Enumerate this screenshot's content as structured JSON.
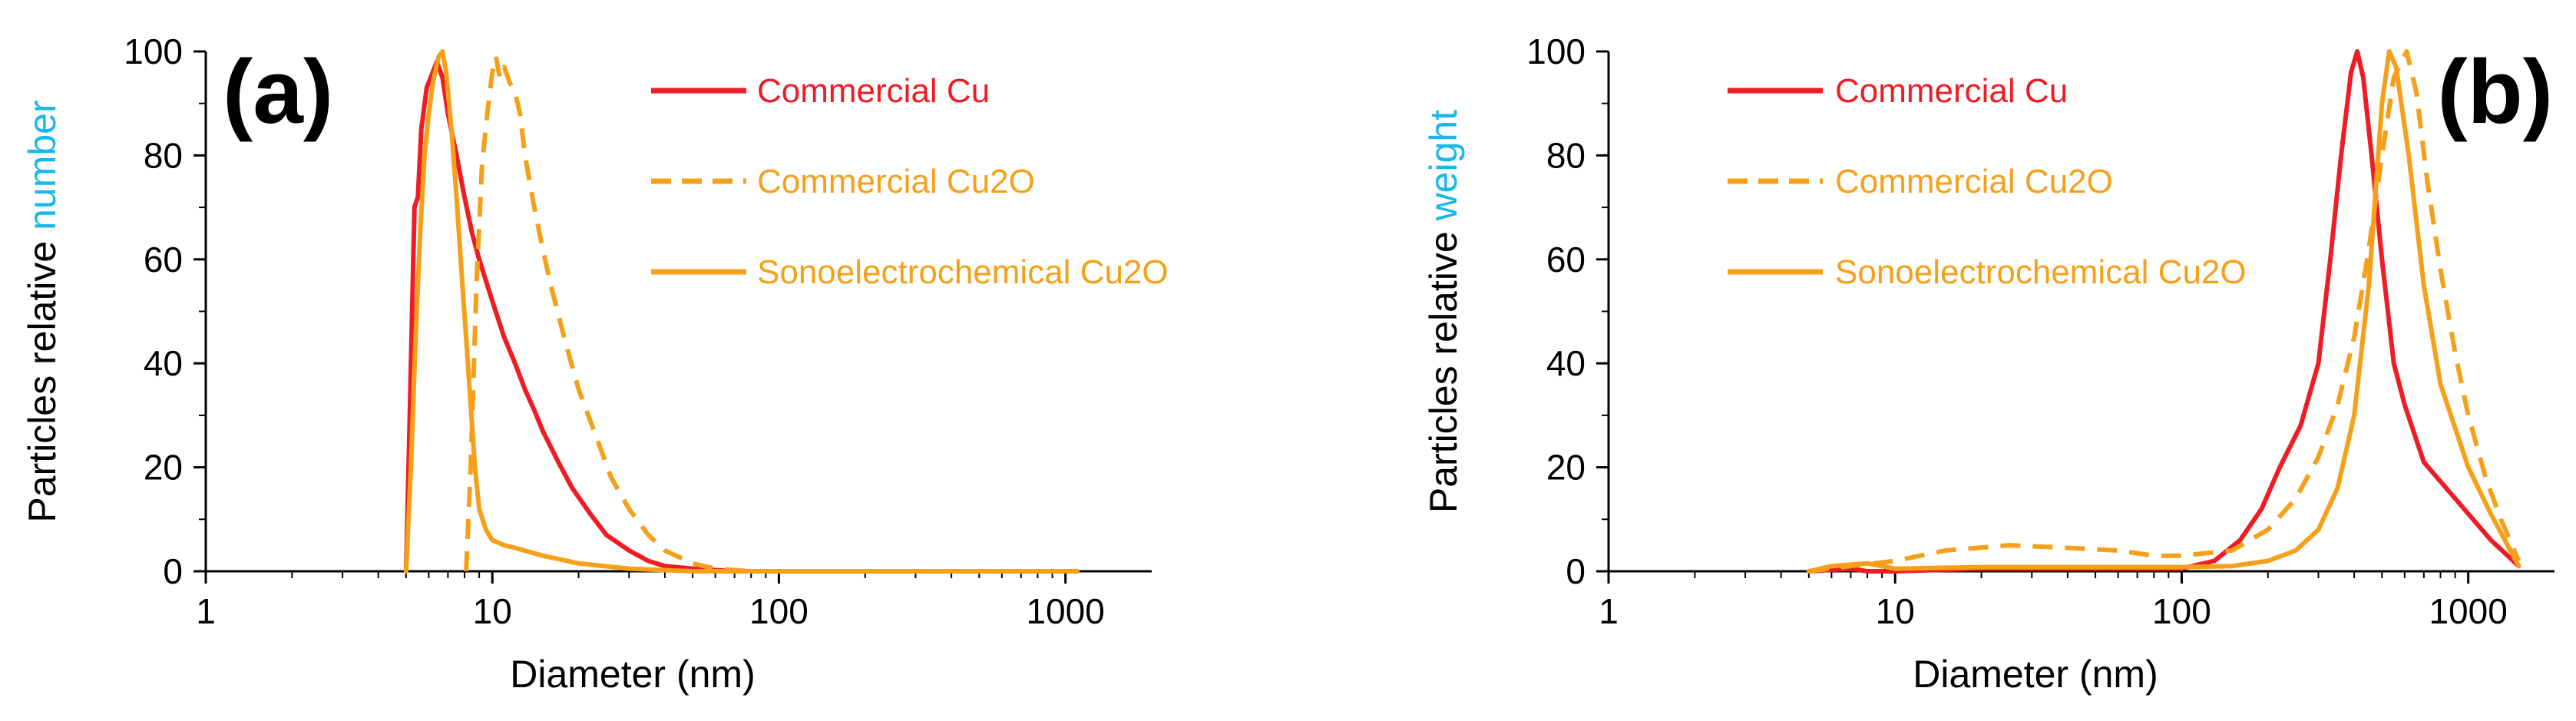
{
  "colors": {
    "red": "#EE1C25",
    "orange": "#F6A01A",
    "blue": "#1BB7EA",
    "axis": "#000000"
  },
  "chart_data": [
    {
      "type": "line",
      "panel_label": "(a)",
      "xscale": "log",
      "xlim": [
        1,
        2000
      ],
      "ylim": [
        0,
        100
      ],
      "xticks": [
        1,
        10,
        100,
        1000
      ],
      "xtick_labels": [
        "1",
        "10",
        "100",
        "1000"
      ],
      "yticks": [
        0,
        20,
        40,
        60,
        80,
        100
      ],
      "ytick_labels": [
        "0",
        "20",
        "40",
        "60",
        "80",
        "100"
      ],
      "xlabel": "Diameter (nm)",
      "ylabel_prefix": "Particles relative ",
      "ylabel_highlight": "number",
      "legend_position": "top-right",
      "series": [
        {
          "name": "Commercial Cu",
          "color": "#EE1C25",
          "dash": "solid",
          "points": [
            [
              5.0,
              0
            ],
            [
              5.15,
              30
            ],
            [
              5.35,
              70
            ],
            [
              5.5,
              72
            ],
            [
              5.65,
              85
            ],
            [
              5.9,
              93
            ],
            [
              6.2,
              96
            ],
            [
              6.4,
              98
            ],
            [
              6.7,
              95
            ],
            [
              7.0,
              88
            ],
            [
              7.5,
              80
            ],
            [
              8.0,
              72
            ],
            [
              8.5,
              65
            ],
            [
              9.0,
              60
            ],
            [
              10,
              52
            ],
            [
              11,
              45
            ],
            [
              12,
              40
            ],
            [
              13,
              35
            ],
            [
              14,
              31
            ],
            [
              15,
              27
            ],
            [
              17,
              21
            ],
            [
              19,
              16
            ],
            [
              22,
              11
            ],
            [
              25,
              7
            ],
            [
              30,
              4
            ],
            [
              35,
              2
            ],
            [
              40,
              1
            ],
            [
              50,
              0.5
            ],
            [
              70,
              0
            ],
            [
              150,
              0
            ],
            [
              1100,
              0
            ]
          ]
        },
        {
          "name": "Commercial Cu2O",
          "color": "#F6A01A",
          "dash": "dashed",
          "points": [
            [
              8.1,
              0
            ],
            [
              8.4,
              20
            ],
            [
              8.8,
              55
            ],
            [
              9.2,
              78
            ],
            [
              9.6,
              88
            ],
            [
              10.0,
              96
            ],
            [
              10.3,
              99
            ],
            [
              10.6,
              95
            ],
            [
              11.0,
              97
            ],
            [
              11.5,
              94
            ],
            [
              12,
              92
            ],
            [
              12.5,
              88
            ],
            [
              13,
              80
            ],
            [
              14,
              70
            ],
            [
              15,
              62
            ],
            [
              16,
              55
            ],
            [
              18,
              44
            ],
            [
              20,
              35
            ],
            [
              23,
              26
            ],
            [
              26,
              18
            ],
            [
              30,
              12
            ],
            [
              35,
              7
            ],
            [
              40,
              4
            ],
            [
              50,
              1.5
            ],
            [
              60,
              0.5
            ],
            [
              80,
              0
            ],
            [
              150,
              0
            ],
            [
              1100,
              0
            ]
          ]
        },
        {
          "name": "Sonoelectrochemical Cu2O",
          "color": "#F6A01A",
          "dash": "solid",
          "points": [
            [
              5.0,
              0
            ],
            [
              5.2,
              20
            ],
            [
              5.4,
              45
            ],
            [
              5.6,
              65
            ],
            [
              5.8,
              80
            ],
            [
              6.0,
              88
            ],
            [
              6.2,
              94
            ],
            [
              6.5,
              99
            ],
            [
              6.7,
              100
            ],
            [
              6.9,
              96
            ],
            [
              7.2,
              85
            ],
            [
              7.5,
              72
            ],
            [
              7.8,
              58
            ],
            [
              8.1,
              45
            ],
            [
              8.4,
              32
            ],
            [
              8.7,
              20
            ],
            [
              9.0,
              12
            ],
            [
              9.5,
              8
            ],
            [
              10,
              6
            ],
            [
              11,
              5
            ],
            [
              12,
              4.5
            ],
            [
              15,
              3
            ],
            [
              20,
              1.5
            ],
            [
              30,
              0.5
            ],
            [
              50,
              0
            ],
            [
              100,
              0
            ],
            [
              1100,
              0
            ]
          ]
        }
      ]
    },
    {
      "type": "line",
      "panel_label": "(b)",
      "xscale": "log",
      "xlim": [
        1,
        2000
      ],
      "ylim": [
        0,
        100
      ],
      "xticks": [
        1,
        10,
        100,
        1000
      ],
      "xtick_labels": [
        "1",
        "10",
        "100",
        "1000"
      ],
      "yticks": [
        0,
        20,
        40,
        60,
        80,
        100
      ],
      "ytick_labels": [
        "0",
        "20",
        "40",
        "60",
        "80",
        "100"
      ],
      "xlabel": "Diameter (nm)",
      "ylabel_prefix": "Particles relative ",
      "ylabel_highlight": "weight",
      "legend_position": "top-left",
      "series": [
        {
          "name": "Commercial Cu",
          "color": "#EE1C25",
          "dash": "solid",
          "points": [
            [
              5,
              0
            ],
            [
              7,
              0.5
            ],
            [
              8,
              0
            ],
            [
              10,
              0
            ],
            [
              20,
              0.5
            ],
            [
              50,
              0.5
            ],
            [
              100,
              0.5
            ],
            [
              130,
              2
            ],
            [
              160,
              6
            ],
            [
              190,
              12
            ],
            [
              220,
              20
            ],
            [
              260,
              28
            ],
            [
              300,
              40
            ],
            [
              330,
              60
            ],
            [
              360,
              80
            ],
            [
              390,
              96
            ],
            [
              410,
              100
            ],
            [
              430,
              95
            ],
            [
              460,
              80
            ],
            [
              500,
              60
            ],
            [
              550,
              40
            ],
            [
              600,
              32
            ],
            [
              700,
              21
            ],
            [
              900,
              14
            ],
            [
              1200,
              6
            ],
            [
              1500,
              1
            ]
          ]
        },
        {
          "name": "Commercial Cu2O",
          "color": "#F6A01A",
          "dash": "dashed",
          "points": [
            [
              5,
              0
            ],
            [
              7,
              1
            ],
            [
              10,
              2
            ],
            [
              15,
              4
            ],
            [
              25,
              5
            ],
            [
              40,
              4.5
            ],
            [
              60,
              4
            ],
            [
              80,
              3
            ],
            [
              100,
              3
            ],
            [
              150,
              4
            ],
            [
              200,
              8
            ],
            [
              250,
              14
            ],
            [
              300,
              22
            ],
            [
              350,
              32
            ],
            [
              400,
              45
            ],
            [
              450,
              62
            ],
            [
              500,
              80
            ],
            [
              550,
              95
            ],
            [
              610,
              100
            ],
            [
              660,
              92
            ],
            [
              720,
              75
            ],
            [
              800,
              58
            ],
            [
              900,
              42
            ],
            [
              1000,
              30
            ],
            [
              1150,
              18
            ],
            [
              1300,
              10
            ],
            [
              1500,
              2
            ]
          ]
        },
        {
          "name": "Sonoelectrochemical Cu2O",
          "color": "#F6A01A",
          "dash": "solid",
          "points": [
            [
              5,
              0
            ],
            [
              6,
              1
            ],
            [
              8,
              1.5
            ],
            [
              10,
              0.5
            ],
            [
              20,
              0.8
            ],
            [
              50,
              0.8
            ],
            [
              100,
              0.8
            ],
            [
              150,
              1
            ],
            [
              200,
              2
            ],
            [
              250,
              4
            ],
            [
              300,
              8
            ],
            [
              350,
              16
            ],
            [
              400,
              30
            ],
            [
              450,
              55
            ],
            [
              500,
              90
            ],
            [
              530,
              100
            ],
            [
              560,
              97
            ],
            [
              620,
              80
            ],
            [
              700,
              55
            ],
            [
              800,
              36
            ],
            [
              1000,
              20
            ],
            [
              1200,
              11
            ],
            [
              1500,
              1
            ]
          ]
        }
      ]
    }
  ]
}
